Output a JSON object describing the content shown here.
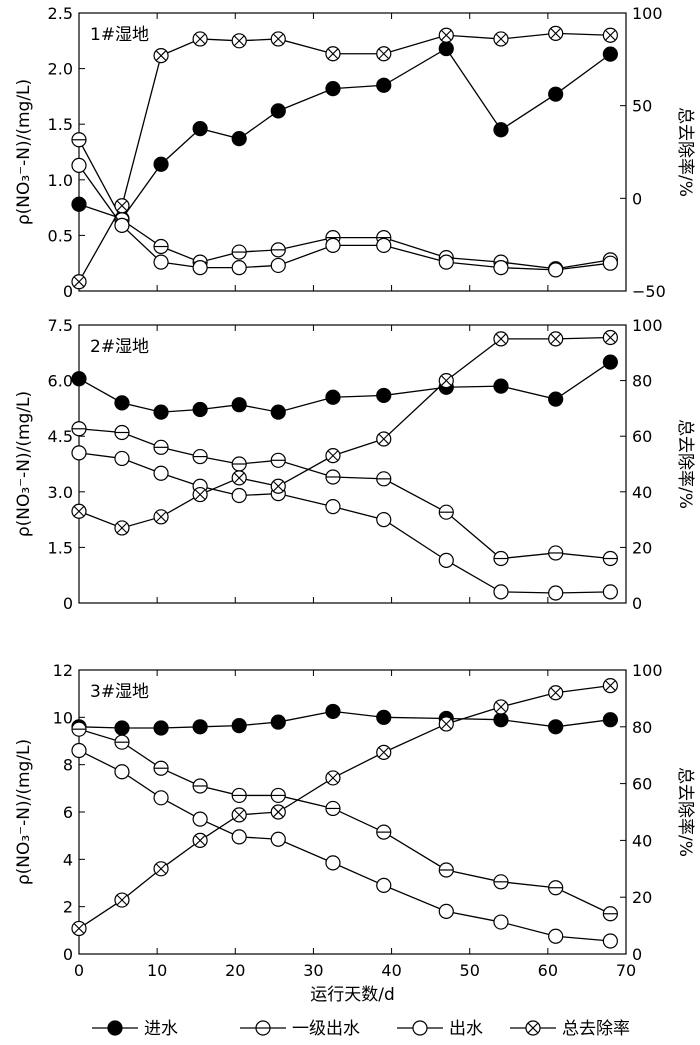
{
  "chart_data": [
    {
      "type": "line",
      "panel_label": "1#湿地",
      "ylabel": "ρ(NO₃⁻-N)/(mg/L)",
      "y2label": "总去除率/%",
      "xlim": [
        0,
        70
      ],
      "ylim": [
        0,
        2.5
      ],
      "y2lim": [
        -50,
        100
      ],
      "x_ticks": [
        0,
        10,
        20,
        30,
        40,
        50,
        60,
        70
      ],
      "y_ticks": [
        0,
        0.5,
        1.0,
        1.5,
        2.0,
        2.5
      ],
      "y_tick_labels": [
        "0",
        "0.5",
        "1.0",
        "1.5",
        "2.0",
        "2.5"
      ],
      "y2_ticks": [
        -50,
        0,
        50,
        100
      ],
      "y2_tick_labels": [
        "−50",
        "0",
        "50",
        "100"
      ],
      "x": [
        0,
        5.5,
        10.5,
        15.5,
        20.5,
        25.5,
        32.5,
        39,
        47,
        54,
        61,
        68
      ],
      "series": [
        {
          "name": "进水",
          "marker": "filled",
          "axis": "left",
          "values": [
            0.78,
            0.65,
            1.14,
            1.46,
            1.37,
            1.62,
            1.82,
            1.85,
            2.18,
            1.45,
            1.77,
            2.13
          ]
        },
        {
          "name": "一级出水",
          "marker": "half",
          "axis": "left",
          "values": [
            1.36,
            0.64,
            0.4,
            0.26,
            0.35,
            0.37,
            0.48,
            0.48,
            0.3,
            0.26,
            0.2,
            0.28
          ]
        },
        {
          "name": "出水",
          "marker": "open",
          "axis": "left",
          "values": [
            1.13,
            0.59,
            0.26,
            0.21,
            0.21,
            0.23,
            0.41,
            0.41,
            0.26,
            0.21,
            0.19,
            0.25
          ]
        },
        {
          "name": "总去除率",
          "marker": "cross",
          "axis": "right",
          "values": [
            -45,
            -4,
            77,
            86,
            85,
            86,
            78,
            78,
            88,
            86,
            89,
            88
          ]
        }
      ]
    },
    {
      "type": "line",
      "panel_label": "2#湿地",
      "ylabel": "ρ(NO₃⁻-N)/(mg/L)",
      "y2label": "总去除率/%",
      "xlim": [
        0,
        70
      ],
      "ylim": [
        0,
        7.5
      ],
      "y2lim": [
        0,
        100
      ],
      "x_ticks": [
        0,
        10,
        20,
        30,
        40,
        50,
        60,
        70
      ],
      "y_ticks": [
        0,
        1.5,
        3.0,
        4.5,
        6.0,
        7.5
      ],
      "y_tick_labels": [
        "0",
        "1.5",
        "3.0",
        "4.5",
        "6.0",
        "7.5"
      ],
      "y2_ticks": [
        0,
        20,
        40,
        60,
        80,
        100
      ],
      "y2_tick_labels": [
        "0",
        "20",
        "40",
        "60",
        "80",
        "100"
      ],
      "x": [
        0,
        5.5,
        10.5,
        15.5,
        20.5,
        25.5,
        32.5,
        39,
        47,
        54,
        61,
        68
      ],
      "series": [
        {
          "name": "进水",
          "marker": "filled",
          "axis": "left",
          "values": [
            6.05,
            5.4,
            5.15,
            5.22,
            5.35,
            5.15,
            5.55,
            5.6,
            5.82,
            5.85,
            5.5,
            6.5
          ]
        },
        {
          "name": "一级出水",
          "marker": "half",
          "axis": "left",
          "values": [
            4.7,
            4.6,
            4.2,
            3.95,
            3.75,
            3.85,
            3.4,
            3.35,
            2.45,
            1.2,
            1.35,
            1.2
          ]
        },
        {
          "name": "出水",
          "marker": "open",
          "axis": "left",
          "values": [
            4.05,
            3.9,
            3.5,
            3.15,
            2.9,
            2.95,
            2.6,
            2.25,
            1.15,
            0.3,
            0.27,
            0.3
          ]
        },
        {
          "name": "总去除率",
          "marker": "cross",
          "axis": "right",
          "values": [
            33,
            27,
            31,
            39,
            45,
            42,
            53,
            59,
            80,
            95,
            95,
            95.5
          ]
        }
      ]
    },
    {
      "type": "line",
      "panel_label": "3#湿地",
      "ylabel": "ρ(NO₃⁻-N)/(mg/L)",
      "y2label": "总去除率/%",
      "xlabel": "运行天数/d",
      "xlim": [
        0,
        70
      ],
      "ylim": [
        0,
        12
      ],
      "y2lim": [
        0,
        100
      ],
      "x_ticks": [
        0,
        10,
        20,
        30,
        40,
        50,
        60,
        70
      ],
      "x_tick_labels": [
        "0",
        "10",
        "20",
        "30",
        "40",
        "50",
        "60",
        "70"
      ],
      "y_ticks": [
        0,
        2,
        4,
        6,
        8,
        10,
        12
      ],
      "y_tick_labels": [
        "0",
        "2",
        "4",
        "6",
        "8",
        "10",
        "12"
      ],
      "y2_ticks": [
        0,
        20,
        40,
        60,
        80,
        100
      ],
      "y2_tick_labels": [
        "0",
        "20",
        "40",
        "60",
        "80",
        "100"
      ],
      "x": [
        0,
        5.5,
        10.5,
        15.5,
        20.5,
        25.5,
        32.5,
        39,
        47,
        54,
        61,
        68
      ],
      "series": [
        {
          "name": "进水",
          "marker": "filled",
          "axis": "left",
          "values": [
            9.6,
            9.55,
            9.55,
            9.6,
            9.65,
            9.8,
            10.25,
            10.0,
            9.95,
            9.9,
            9.6,
            9.9
          ]
        },
        {
          "name": "一级出水",
          "marker": "half",
          "axis": "left",
          "values": [
            9.5,
            8.95,
            7.85,
            7.1,
            6.7,
            6.7,
            6.15,
            5.15,
            3.55,
            3.05,
            2.8,
            1.7
          ]
        },
        {
          "name": "出水",
          "marker": "open",
          "axis": "left",
          "values": [
            8.6,
            7.7,
            6.6,
            5.7,
            4.95,
            4.85,
            3.85,
            2.9,
            1.8,
            1.35,
            0.75,
            0.55
          ]
        },
        {
          "name": "总去除率",
          "marker": "cross",
          "axis": "right",
          "values": [
            9,
            19,
            30,
            40,
            49,
            50,
            62,
            71,
            81,
            87,
            92,
            94.5
          ]
        }
      ]
    }
  ],
  "legend": {
    "position": "bottom",
    "items": [
      {
        "label": "进水",
        "marker": "filled"
      },
      {
        "label": "一级出水",
        "marker": "half"
      },
      {
        "label": "出水",
        "marker": "open"
      },
      {
        "label": "总去除率",
        "marker": "cross"
      }
    ]
  }
}
